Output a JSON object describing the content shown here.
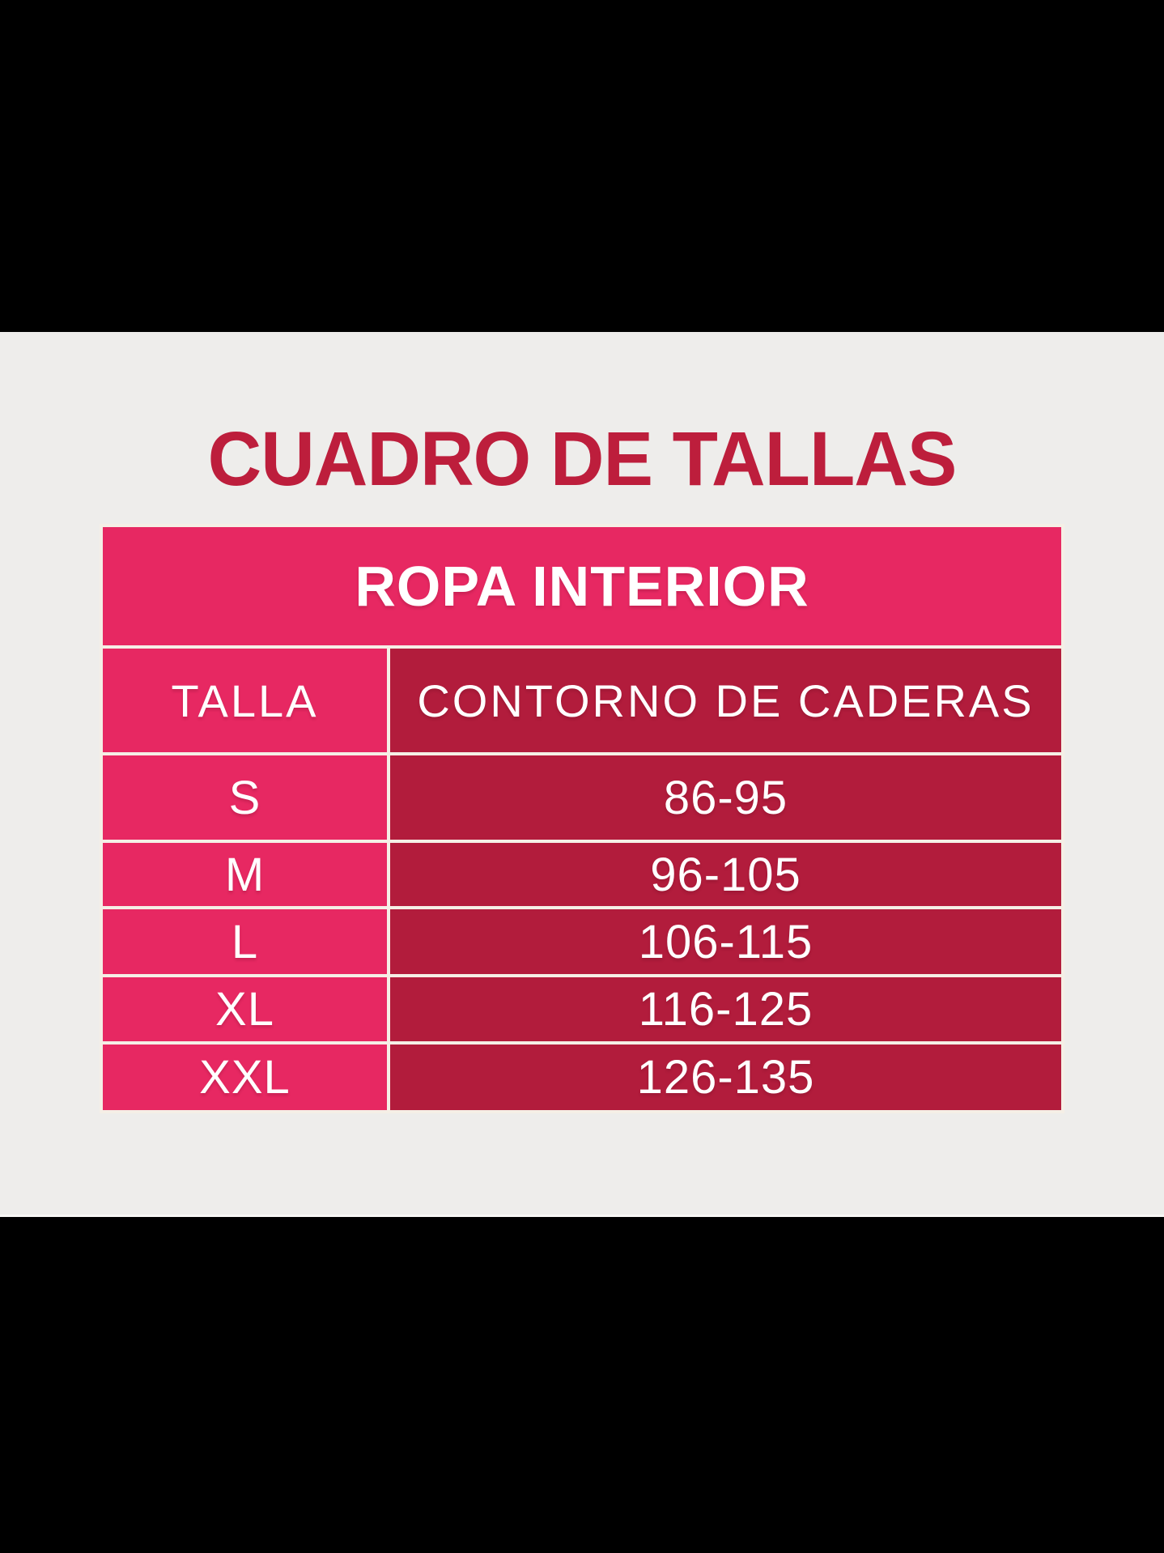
{
  "page": {
    "title": "CUADRO DE TALLAS"
  },
  "size_chart": {
    "category_header": "ROPA INTERIOR",
    "columns": {
      "size_label": "TALLA",
      "measure_label": "CONTORNO DE CADERAS"
    },
    "rows": [
      {
        "talla": "S",
        "contorno": "86-95"
      },
      {
        "talla": "M",
        "contorno": "96-105"
      },
      {
        "talla": "L",
        "contorno": "106-115"
      },
      {
        "talla": "XL",
        "contorno": "116-125"
      },
      {
        "talla": "XXL",
        "contorno": "126-135"
      }
    ]
  },
  "colors": {
    "pink": "#e72862",
    "dark_red": "#b21c3c",
    "title_red": "#bd1e3c",
    "content_background": "#eeedeb",
    "table_gap": "#f5efe6",
    "letterbox": "#000000",
    "text": "#ffffff"
  },
  "chart_data": {
    "type": "table",
    "title": "CUADRO DE TALLAS",
    "section": "ROPA INTERIOR",
    "columns": [
      "TALLA",
      "CONTORNO DE CADERAS"
    ],
    "rows": [
      [
        "S",
        "86-95"
      ],
      [
        "M",
        "96-105"
      ],
      [
        "L",
        "106-115"
      ],
      [
        "XL",
        "116-125"
      ],
      [
        "XXL",
        "126-135"
      ]
    ]
  }
}
